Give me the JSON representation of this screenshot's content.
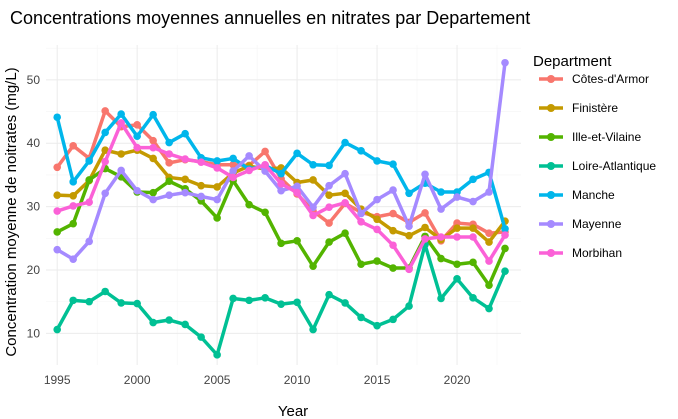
{
  "chart_data": {
    "type": "line",
    "title": "Concentrations moyennes annuelles en nitrates par Departement",
    "xlabel": "Year",
    "ylabel": "Concentration moyenne de noitrates (mg/L)",
    "xlim": [
      1994.3,
      2024.0
    ],
    "ylim": [
      5.0,
      55.5
    ],
    "x_ticks": [
      1995,
      2000,
      2005,
      2010,
      2015,
      2020
    ],
    "y_ticks": [
      10,
      20,
      30,
      40,
      50
    ],
    "grid": true,
    "legend_title": "Department",
    "legend_position": "right",
    "x": [
      1995,
      1996,
      1997,
      1998,
      1999,
      2000,
      2001,
      2002,
      2003,
      2004,
      2005,
      2006,
      2007,
      2008,
      2009,
      2010,
      2011,
      2012,
      2013,
      2014,
      2015,
      2016,
      2017,
      2018,
      2019,
      2020,
      2021,
      2022,
      2023
    ],
    "series": [
      {
        "name": "Côtes-d'Armor",
        "color": "#F8766D",
        "values": [
          36.2,
          39.6,
          37.6,
          45.1,
          42.6,
          42.9,
          40.4,
          36.9,
          37.4,
          37.1,
          36.6,
          36.6,
          36.5,
          38.7,
          34.4,
          32.0,
          29.3,
          27.4,
          30.5,
          29.1,
          28.4,
          28.9,
          27.5,
          29.0,
          24.6,
          27.4,
          27.2,
          25.8,
          26.0
        ]
      },
      {
        "name": "Finistère",
        "color": "#C49A00",
        "values": [
          31.8,
          31.7,
          34.1,
          38.9,
          38.3,
          38.9,
          37.6,
          34.6,
          34.3,
          33.3,
          33.1,
          35.3,
          36.4,
          35.9,
          36.1,
          33.8,
          34.2,
          31.8,
          32.1,
          29.6,
          28.0,
          26.2,
          25.4,
          26.7,
          24.8,
          26.6,
          26.6,
          24.4,
          27.7
        ]
      },
      {
        "name": "Ille-et-Vilaine",
        "color": "#53B400",
        "values": [
          26.0,
          27.3,
          34.2,
          36.0,
          34.7,
          32.3,
          32.2,
          34.0,
          32.8,
          30.9,
          28.2,
          34.1,
          30.3,
          29.1,
          24.2,
          24.6,
          20.6,
          24.4,
          25.8,
          20.9,
          21.4,
          20.3,
          20.3,
          25.3,
          21.8,
          20.9,
          21.2,
          17.6,
          23.4
        ]
      },
      {
        "name": "Loire-Atlantique",
        "color": "#00C094",
        "values": [
          10.6,
          15.2,
          15.0,
          16.6,
          14.8,
          14.7,
          11.7,
          12.1,
          11.4,
          9.4,
          6.6,
          15.5,
          15.2,
          15.6,
          14.6,
          14.9,
          10.6,
          16.1,
          14.8,
          12.5,
          11.2,
          12.2,
          14.3,
          24.0,
          15.5,
          18.6,
          15.6,
          13.9,
          19.8
        ]
      },
      {
        "name": "Manche",
        "color": "#00B6EB",
        "values": [
          44.1,
          33.9,
          37.2,
          41.7,
          44.6,
          41.1,
          44.5,
          40.1,
          41.5,
          37.7,
          37.2,
          37.6,
          35.9,
          36.5,
          35.2,
          38.4,
          36.6,
          36.5,
          40.1,
          38.8,
          37.2,
          36.7,
          32.1,
          33.7,
          32.3,
          32.3,
          34.3,
          35.4,
          26.5
        ]
      },
      {
        "name": "Mayenne",
        "color": "#A58AFF",
        "values": [
          23.2,
          21.7,
          24.5,
          32.1,
          35.7,
          32.5,
          31.1,
          31.8,
          32.2,
          31.6,
          31.1,
          35.6,
          38.0,
          35.6,
          32.5,
          33.2,
          29.9,
          33.3,
          35.2,
          28.9,
          31.1,
          32.6,
          26.9,
          35.1,
          29.6,
          31.5,
          30.8,
          32.3,
          52.7
        ]
      },
      {
        "name": "Morbihan",
        "color": "#FB61D7",
        "values": [
          29.3,
          30.1,
          30.7,
          37.1,
          43.2,
          39.3,
          39.3,
          38.3,
          37.5,
          37.0,
          36.1,
          34.6,
          35.7,
          36.6,
          33.6,
          32.2,
          28.6,
          29.9,
          30.6,
          27.6,
          26.4,
          23.9,
          20.1,
          24.9,
          25.2,
          25.2,
          25.2,
          21.4,
          25.5
        ]
      }
    ]
  }
}
